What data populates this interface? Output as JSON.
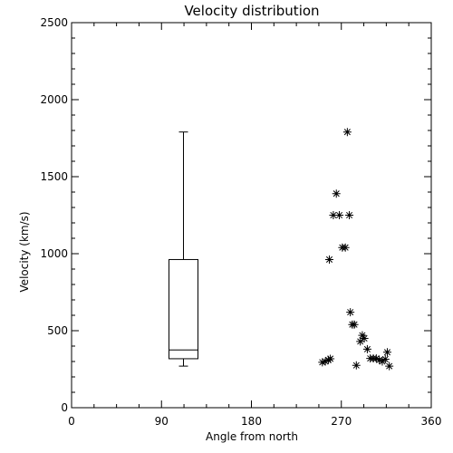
{
  "chart_data": {
    "type": "scatter",
    "title": "Velocity distribution",
    "xlabel": "Angle from north",
    "ylabel": "Velocity (km/s)",
    "xlim": [
      0,
      360
    ],
    "ylim": [
      0,
      2500
    ],
    "xticks": [
      0,
      90,
      180,
      270,
      360
    ],
    "yticks": [
      0,
      500,
      1000,
      1500,
      2000,
      2500
    ],
    "x_minor_per_major": 4,
    "y_minor_per_major": 5,
    "grid": false,
    "boxplot": {
      "x": 112,
      "min": 270,
      "q1": 318,
      "median": 375,
      "q3": 962,
      "max": 1790
    },
    "scatter": {
      "marker": "asterisk",
      "x": [
        251,
        254,
        257,
        259,
        258,
        262,
        265,
        268,
        271,
        274,
        276,
        278,
        279,
        281,
        283,
        285,
        289,
        291,
        293,
        296,
        299,
        302,
        305,
        308,
        311,
        314,
        316,
        318
      ],
      "y": [
        295,
        300,
        310,
        318,
        962,
        1250,
        1390,
        1250,
        1040,
        1040,
        1790,
        1250,
        620,
        540,
        540,
        275,
        430,
        470,
        450,
        380,
        320,
        320,
        320,
        310,
        300,
        315,
        360,
        270
      ]
    }
  }
}
